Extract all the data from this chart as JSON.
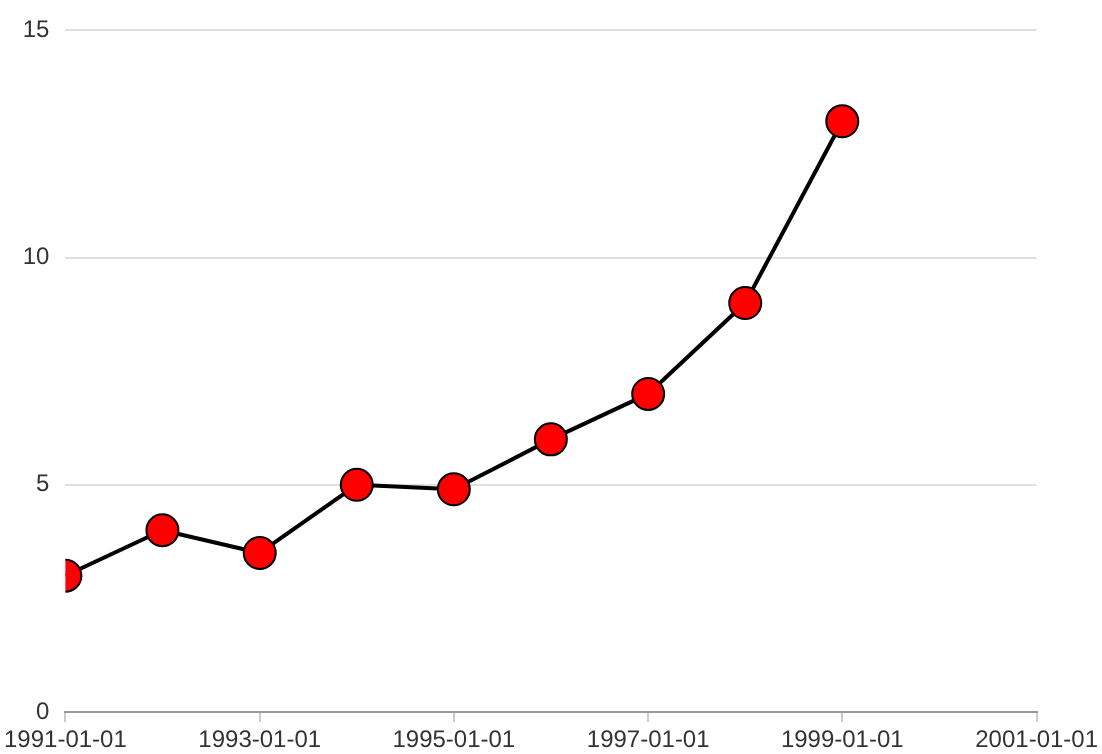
{
  "chart_data": {
    "type": "line",
    "x": [
      "1991-01-01",
      "1992-01-01",
      "1993-01-01",
      "1994-01-01",
      "1995-01-01",
      "1996-01-01",
      "1997-01-01",
      "1998-01-01",
      "1999-01-01"
    ],
    "series": [
      {
        "color": "#000000",
        "colors": [
          "#ff0000",
          "#ff0000",
          "#ff0000",
          "#ff0000",
          "#ff0000",
          "#ff0000",
          "#ff0000",
          "#ff0000",
          "#ff0000"
        ],
        "values": [
          3,
          4,
          3.5,
          5,
          4.9,
          6,
          7,
          9,
          13
        ]
      }
    ],
    "xlim": [
      "1991-01-01",
      "2001-01-01"
    ],
    "xticks": [
      "1991-01-01",
      "1993-01-01",
      "1995-01-01",
      "1997-01-01",
      "1999-01-01",
      "2001-01-01"
    ],
    "ylim": [
      0,
      15
    ],
    "yticks": [
      0,
      5,
      10,
      15
    ],
    "grid": "y",
    "marker": "circle",
    "line_style": "solid",
    "legend": false
  }
}
